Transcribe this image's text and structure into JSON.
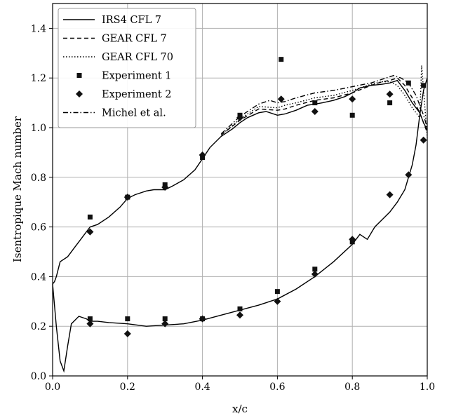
{
  "chart_data": {
    "type": "line",
    "xlabel": "x/c",
    "ylabel": "Isentropique Mach number",
    "xlim": [
      0.0,
      1.0
    ],
    "ylim": [
      0.0,
      1.5
    ],
    "xticks": [
      "0.0",
      "0.2",
      "0.4",
      "0.6",
      "0.8",
      "1.0"
    ],
    "yticks": [
      "0.0",
      "0.2",
      "0.4",
      "0.6",
      "0.8",
      "1.0",
      "1.2",
      "1.4"
    ],
    "grid": true,
    "legend_position": "top-left",
    "series": [
      {
        "name": "IRS4 CFL 7",
        "style": "solid",
        "color": "#000000",
        "upper": {
          "x": [
            0.0,
            0.005,
            0.01,
            0.02,
            0.04,
            0.06,
            0.08,
            0.1,
            0.12,
            0.15,
            0.18,
            0.2,
            0.22,
            0.25,
            0.27,
            0.3,
            0.32,
            0.35,
            0.38,
            0.4,
            0.42,
            0.45,
            0.48,
            0.5,
            0.52,
            0.55,
            0.57,
            0.6,
            0.62,
            0.65,
            0.68,
            0.7,
            0.72,
            0.75,
            0.78,
            0.8,
            0.82,
            0.85,
            0.88,
            0.9,
            0.92,
            0.94,
            0.96,
            0.98,
            0.99,
            1.0
          ],
          "y": [
            0.37,
            0.38,
            0.4,
            0.46,
            0.48,
            0.52,
            0.56,
            0.6,
            0.61,
            0.64,
            0.68,
            0.715,
            0.73,
            0.745,
            0.75,
            0.75,
            0.765,
            0.79,
            0.83,
            0.875,
            0.92,
            0.965,
            0.995,
            1.02,
            1.04,
            1.06,
            1.065,
            1.05,
            1.055,
            1.07,
            1.09,
            1.095,
            1.1,
            1.11,
            1.125,
            1.14,
            1.16,
            1.17,
            1.175,
            1.18,
            1.19,
            1.15,
            1.1,
            1.06,
            1.02,
            0.99
          ]
        },
        "lower": {
          "x": [
            0.0,
            0.01,
            0.02,
            0.03,
            0.04,
            0.05,
            0.07,
            0.09,
            0.1,
            0.12,
            0.15,
            0.2,
            0.25,
            0.3,
            0.35,
            0.4,
            0.45,
            0.5,
            0.55,
            0.6,
            0.65,
            0.7,
            0.75,
            0.8,
            0.82,
            0.84,
            0.86,
            0.88,
            0.9,
            0.92,
            0.94,
            0.96,
            0.97,
            0.98,
            0.99,
            1.0
          ],
          "y": [
            0.37,
            0.2,
            0.06,
            0.02,
            0.12,
            0.21,
            0.24,
            0.23,
            0.22,
            0.22,
            0.215,
            0.21,
            0.2,
            0.205,
            0.21,
            0.225,
            0.245,
            0.265,
            0.285,
            0.31,
            0.35,
            0.4,
            0.46,
            0.53,
            0.57,
            0.55,
            0.6,
            0.63,
            0.66,
            0.7,
            0.75,
            0.85,
            0.93,
            1.05,
            1.15,
            1.2
          ]
        }
      },
      {
        "name": "GEAR CFL 7",
        "style": "dashed",
        "color": "#000000",
        "upper": {
          "x": [
            0.45,
            0.5,
            0.55,
            0.6,
            0.62,
            0.65,
            0.7,
            0.75,
            0.8,
            0.85,
            0.88,
            0.9,
            0.92,
            0.94,
            0.96,
            0.98,
            1.0
          ],
          "y": [
            0.97,
            1.03,
            1.075,
            1.07,
            1.075,
            1.09,
            1.11,
            1.12,
            1.14,
            1.17,
            1.185,
            1.19,
            1.2,
            1.17,
            1.12,
            1.06,
            0.98
          ]
        }
      },
      {
        "name": "GEAR CFL 70",
        "style": "dotted",
        "color": "#000000",
        "upper": {
          "x": [
            0.45,
            0.5,
            0.55,
            0.6,
            0.62,
            0.65,
            0.7,
            0.75,
            0.8,
            0.85,
            0.88,
            0.9,
            0.92,
            0.94,
            0.96,
            0.98,
            0.985,
            1.0
          ],
          "y": [
            0.97,
            1.035,
            1.085,
            1.08,
            1.09,
            1.1,
            1.12,
            1.13,
            1.15,
            1.175,
            1.185,
            1.185,
            1.17,
            1.13,
            1.08,
            1.04,
            1.25,
            0.96
          ]
        }
      },
      {
        "name": "Experiment 1",
        "style": "marker-square",
        "color": "#000000",
        "points": {
          "x": [
            0.1,
            0.2,
            0.3,
            0.4,
            0.5,
            0.61,
            0.7,
            0.8,
            0.9,
            0.95,
            0.99,
            0.1,
            0.2,
            0.3,
            0.4,
            0.5,
            0.6,
            0.7,
            0.8
          ],
          "y": [
            0.64,
            0.72,
            0.77,
            0.88,
            1.05,
            1.275,
            1.1,
            1.05,
            1.1,
            1.18,
            1.17,
            0.23,
            0.23,
            0.23,
            0.23,
            0.27,
            0.34,
            0.43,
            0.54
          ]
        }
      },
      {
        "name": "Experiment 2",
        "style": "marker-diamond",
        "color": "#000000",
        "points": {
          "x": [
            0.1,
            0.2,
            0.3,
            0.4,
            0.5,
            0.61,
            0.7,
            0.8,
            0.9,
            0.99,
            0.1,
            0.2,
            0.3,
            0.4,
            0.5,
            0.6,
            0.7,
            0.8,
            0.9,
            0.95
          ],
          "y": [
            0.58,
            0.72,
            0.76,
            0.89,
            1.04,
            1.115,
            1.065,
            1.115,
            1.135,
            0.95,
            0.21,
            0.17,
            0.21,
            0.23,
            0.245,
            0.3,
            0.41,
            0.55,
            0.73,
            0.81
          ]
        }
      },
      {
        "name": "Michel et al.",
        "style": "dashdot",
        "color": "#000000",
        "upper": {
          "x": [
            0.45,
            0.5,
            0.55,
            0.58,
            0.6,
            0.62,
            0.65,
            0.7,
            0.75,
            0.8,
            0.85,
            0.88,
            0.9,
            0.91,
            0.93,
            0.95,
            0.97,
            0.99,
            1.0
          ],
          "y": [
            0.975,
            1.045,
            1.095,
            1.11,
            1.1,
            1.105,
            1.12,
            1.14,
            1.15,
            1.165,
            1.18,
            1.195,
            1.205,
            1.21,
            1.2,
            1.18,
            1.13,
            1.05,
            1.0
          ]
        }
      }
    ]
  }
}
